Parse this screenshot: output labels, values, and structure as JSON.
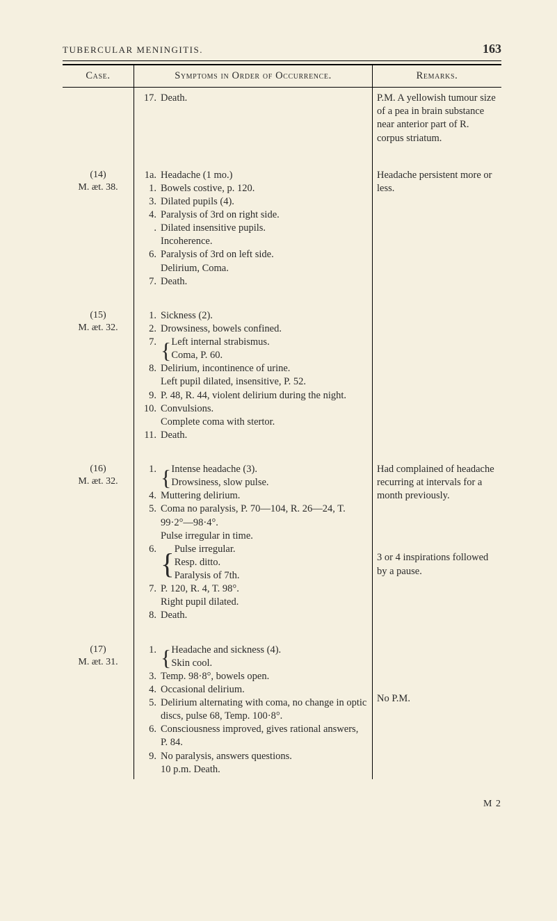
{
  "header": {
    "running_title": "TUBERCULAR MENINGITIS.",
    "page_number": "163"
  },
  "table_headers": {
    "case": "Case.",
    "symptoms": "Symptoms in Order of Occurrence.",
    "remarks": "Remarks."
  },
  "rows": [
    {
      "case_main": "",
      "case_sub": "",
      "symptoms": [
        {
          "n": "17.",
          "t": "Death."
        }
      ],
      "remarks": "P.M. A yellowish tumour size of a pea in brain substance near anterior part of R. corpus striatum."
    },
    {
      "case_main": "(14)",
      "case_sub": "M. æt. 38.",
      "symptoms": [
        {
          "n": "1a.",
          "t": "Headache (1 mo.)"
        },
        {
          "n": "1.",
          "t": "Bowels costive, p. 120."
        },
        {
          "n": "3.",
          "t": "Dilated pupils (4)."
        },
        {
          "n": "4.",
          "t": "Paralysis of 3rd on right side."
        },
        {
          "n": ".",
          "t": "Dilated insensitive pupils."
        },
        {
          "n": "",
          "t": "Incoherence."
        },
        {
          "n": "6.",
          "t": "Paralysis of 3rd on left side."
        },
        {
          "n": "",
          "t": "Delirium, Coma."
        },
        {
          "n": "7.",
          "t": "Death."
        }
      ],
      "remarks": "Headache persistent more or less."
    },
    {
      "case_main": "(15)",
      "case_sub": "M. æt. 32.",
      "symptoms": [
        {
          "n": "1.",
          "t": "Sickness (2)."
        },
        {
          "n": "2.",
          "t": "Drowsiness, bowels confined."
        },
        {
          "n": "7.",
          "t": "{ Left internal strabismus.\nComa, P. 60.",
          "brace": true,
          "lines": [
            "Left internal strabismus.",
            "Coma, P. 60."
          ]
        },
        {
          "n": "8.",
          "t": "Delirium, incontinence of urine."
        },
        {
          "n": "",
          "t": "Left pupil dilated, insensitive, P. 52."
        },
        {
          "n": "9.",
          "t": "P. 48, R. 44, violent delirium during the night."
        },
        {
          "n": "10.",
          "t": "Convulsions."
        },
        {
          "n": "",
          "t": "Complete coma with stertor."
        },
        {
          "n": "11.",
          "t": "Death."
        }
      ],
      "remarks": ""
    },
    {
      "case_main": "(16)",
      "case_sub": "M. æt. 32.",
      "symptoms": [
        {
          "n": "1.",
          "brace": true,
          "lines": [
            "Intense headache (3).",
            "Drowsiness, slow pulse."
          ]
        },
        {
          "n": "4.",
          "t": "Muttering delirium."
        },
        {
          "n": "5.",
          "t": "Coma no paralysis, P. 70—104, R. 26—24, T. 99·2°—98·4°."
        },
        {
          "n": "",
          "t": "Pulse irregular in time."
        },
        {
          "n": "6.",
          "brace": true,
          "lines": [
            "Pulse irregular.",
            "Resp. ditto.",
            "Paralysis of 7th."
          ]
        },
        {
          "n": "7.",
          "t": "P. 120, R. 4, T. 98°."
        },
        {
          "n": "",
          "t": "Right pupil dilated."
        },
        {
          "n": "8.",
          "t": "Death."
        }
      ],
      "remarks": "Had complained of headache recurring at intervals for a month previously.",
      "remarks2": "3 or 4 inspirations followed by a pause."
    },
    {
      "case_main": "(17)",
      "case_sub": "M. æt. 31.",
      "symptoms": [
        {
          "n": "1.",
          "brace": true,
          "lines": [
            "Headache and sickness (4).",
            "Skin cool."
          ]
        },
        {
          "n": "3.",
          "t": "Temp. 98·8°, bowels open."
        },
        {
          "n": "4.",
          "t": "Occasional delirium."
        },
        {
          "n": "5.",
          "t": "Delirium alternating with coma, no change in optic discs, pulse 68, Temp. 100·8°."
        },
        {
          "n": "6.",
          "t": "Consciousness improved, gives rational answers, P. 84."
        },
        {
          "n": "9.",
          "t": "No paralysis, answers questions."
        },
        {
          "n": "",
          "t": "10 p.m. Death.",
          "raw": true
        }
      ],
      "remarks": "",
      "remarks_mid": "No P.M."
    }
  ],
  "footer_sig": "M 2"
}
